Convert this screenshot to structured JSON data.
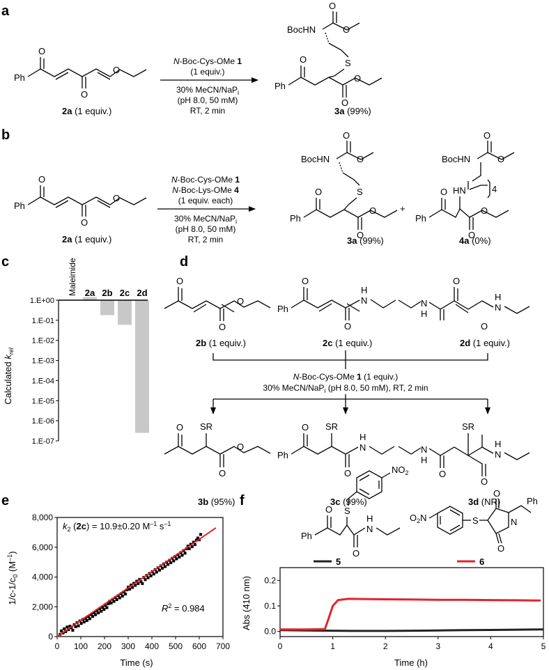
{
  "panels": {
    "a": {
      "label": "a",
      "reactant_label": "2a",
      "reactant_equiv": " (1 equiv.)",
      "product_label": "3a",
      "product_yield": " (99%)",
      "reagent_italic": "N",
      "reagent_rest": "-Boc-Cys-OMe ",
      "reagent_num": "1",
      "reagent_equiv": "(1 equiv.)",
      "cond1": "30% MeCN/NaP",
      "cond1_sub": "i",
      "cond2": "(pH 8.0, 50 mM)",
      "cond3": "RT, 2 min"
    },
    "b": {
      "label": "b",
      "reactant_label": "2a",
      "reactant_equiv": " (1 equiv.)",
      "reagent1_italic": "N",
      "reagent1_rest": "-Boc-Cys-OMe ",
      "reagent1_num": "1",
      "reagent2_italic": "N",
      "reagent2_rest": "-Boc-Lys-OMe ",
      "reagent2_num": "4",
      "reagent_equiv": "(1 equiv. each)",
      "cond1": "30% MeCN/NaP",
      "cond1_sub": "i",
      "cond2": "(pH 8.0, 50 mM)",
      "cond3": "RT, 2 min",
      "product1_label": "3a",
      "product1_yield": " (99%)",
      "plus": "+",
      "product2_label": "4a",
      "product2_yield": " (0%)",
      "chain_sub": "4"
    },
    "c": {
      "label": "c",
      "ylabel_main": "Calculated ",
      "ylabel_k": "k",
      "ylabel_sub": "rel"
    },
    "d": {
      "label": "d",
      "reactants": [
        {
          "label": "2b",
          "equiv": " (1 equiv.)"
        },
        {
          "label": "2c",
          "equiv": " (1 equiv.)"
        },
        {
          "label": "2d",
          "equiv": " (1 equiv.)"
        }
      ],
      "reagent_italic": "N",
      "reagent_rest": "-Boc-Cys-OMe ",
      "reagent_num": "1",
      "reagent_equiv": " (1 equiv.)",
      "cond_a": "30% MeCN/NaP",
      "cond_sub": "i",
      "cond_b": " (pH 8.0, 50 mM), RT, 2 min",
      "products": [
        {
          "label": "3b",
          "yield": " (95%)"
        },
        {
          "label": "3c",
          "yield": " (99%)"
        },
        {
          "label": "3d",
          "yield": " (NR)"
        }
      ]
    },
    "e": {
      "label": "e",
      "k_prefix": "k",
      "k_sub": "2",
      "k_cmpd_open": " (",
      "k_cmpd": "2c",
      "k_cmpd_close": ")",
      "k_value": " = 10.9±0.20 M",
      "k_unit_mid": " s",
      "r2_r": "R",
      "r2_value": " = 0.984",
      "ylabel": "1/c-1/c",
      "ylabel_sub": "0",
      "ylabel_unit": " (M",
      "xlabel": "Time (s)"
    },
    "f": {
      "label": "f",
      "legend": [
        {
          "name": "5",
          "color": "#222222"
        },
        {
          "name": "6",
          "color": "#e2232b"
        }
      ],
      "ylabel": "Abs (410 nm)",
      "xlabel": "Time (h)"
    }
  },
  "atoms": {
    "Ph": "Ph",
    "O": "O",
    "S": "S",
    "N": "N",
    "H": "H",
    "BocHN": "BocHN",
    "HN": "HN",
    "SR": "SR",
    "O2N": "O",
    "O2N_sub": "2",
    "O2N_N": "N",
    "NO2": "NO",
    "NO2_sub": "2"
  },
  "chart_data": [
    {
      "panel": "c",
      "type": "bar",
      "categories": [
        "Maleimide",
        "2a",
        "2b",
        "2c",
        "2d"
      ],
      "values": [
        1.0,
        1.4,
        0.18,
        0.06,
        2.5e-07
      ],
      "yscale": "log",
      "ylim": [
        1e-07,
        1
      ],
      "yticks": [
        "1.E+00",
        "1.E-01",
        "1.E-02",
        "1.E-03",
        "1.E-04",
        "1.E-05",
        "1.E-06",
        "1.E-07"
      ],
      "ylabel": "Calculated krel",
      "bar_color": "#c8c8c8"
    },
    {
      "panel": "e",
      "type": "scatter",
      "xlim": [
        0,
        700
      ],
      "ylim": [
        0,
        8000
      ],
      "xticks": [
        "0",
        "100",
        "200",
        "300",
        "400",
        "500",
        "600",
        "700"
      ],
      "yticks": [
        "0",
        "2,000",
        "4,000",
        "6,000",
        "8,000"
      ],
      "xlabel": "Time (s)",
      "fit": {
        "x": [
          0,
          670
        ],
        "y": [
          0,
          7300
        ],
        "color": "#e2232b"
      },
      "points": [
        [
          12,
          150
        ],
        [
          18,
          380
        ],
        [
          25,
          240
        ],
        [
          30,
          520
        ],
        [
          36,
          330
        ],
        [
          42,
          640
        ],
        [
          48,
          460
        ],
        [
          54,
          700
        ],
        [
          60,
          590
        ],
        [
          66,
          420
        ],
        [
          72,
          800
        ],
        [
          78,
          660
        ],
        [
          84,
          930
        ],
        [
          90,
          720
        ],
        [
          96,
          1050
        ],
        [
          102,
          880
        ],
        [
          108,
          1150
        ],
        [
          114,
          980
        ],
        [
          120,
          1220
        ],
        [
          126,
          1080
        ],
        [
          132,
          1340
        ],
        [
          138,
          1200
        ],
        [
          144,
          1480
        ],
        [
          150,
          1350
        ],
        [
          156,
          1600
        ],
        [
          162,
          1470
        ],
        [
          168,
          1720
        ],
        [
          174,
          1590
        ],
        [
          180,
          1850
        ],
        [
          186,
          1700
        ],
        [
          192,
          1960
        ],
        [
          198,
          1820
        ],
        [
          204,
          2080
        ],
        [
          210,
          1940
        ],
        [
          216,
          2200
        ],
        [
          222,
          2380
        ],
        [
          228,
          2250
        ],
        [
          234,
          2500
        ],
        [
          240,
          2360
        ],
        [
          246,
          2620
        ],
        [
          252,
          2480
        ],
        [
          258,
          2750
        ],
        [
          264,
          2600
        ],
        [
          270,
          2880
        ],
        [
          276,
          2720
        ],
        [
          282,
          3000
        ],
        [
          288,
          2860
        ],
        [
          294,
          3140
        ],
        [
          300,
          3320
        ],
        [
          306,
          3180
        ],
        [
          312,
          3460
        ],
        [
          318,
          3300
        ],
        [
          324,
          3580
        ],
        [
          330,
          3440
        ],
        [
          336,
          3720
        ],
        [
          342,
          3560
        ],
        [
          348,
          3840
        ],
        [
          354,
          3690
        ],
        [
          360,
          3560
        ],
        [
          366,
          3980
        ],
        [
          372,
          3820
        ],
        [
          378,
          4110
        ],
        [
          384,
          3950
        ],
        [
          390,
          4240
        ],
        [
          396,
          4080
        ],
        [
          402,
          4360
        ],
        [
          408,
          4200
        ],
        [
          414,
          4500
        ],
        [
          420,
          4330
        ],
        [
          426,
          4620
        ],
        [
          432,
          4460
        ],
        [
          438,
          4750
        ],
        [
          444,
          4590
        ],
        [
          450,
          4880
        ],
        [
          456,
          4700
        ],
        [
          462,
          5000
        ],
        [
          468,
          4840
        ],
        [
          474,
          5120
        ],
        [
          480,
          4960
        ],
        [
          486,
          5260
        ],
        [
          492,
          5080
        ],
        [
          498,
          5380
        ],
        [
          504,
          5220
        ],
        [
          510,
          5500
        ],
        [
          516,
          5340
        ],
        [
          522,
          5640
        ],
        [
          528,
          5460
        ],
        [
          534,
          5780
        ],
        [
          540,
          5600
        ],
        [
          546,
          5900
        ],
        [
          552,
          6080
        ],
        [
          558,
          5900
        ],
        [
          564,
          6200
        ],
        [
          570,
          6040
        ],
        [
          576,
          6340
        ],
        [
          582,
          6180
        ],
        [
          588,
          6480
        ],
        [
          594,
          6620
        ],
        [
          600,
          6500
        ],
        [
          606,
          6860
        ]
      ]
    },
    {
      "panel": "f",
      "type": "line",
      "xlim": [
        0,
        5
      ],
      "ylim": [
        -0.02,
        0.25
      ],
      "xticks": [
        "0",
        "1",
        "2",
        "3",
        "4",
        "5"
      ],
      "yticks": [
        "0.0",
        "0.1",
        "0.2"
      ],
      "xlabel": "Time (h)",
      "ylabel": "Abs (410 nm)",
      "series": [
        {
          "name": "5",
          "color": "#222222",
          "x": [
            0,
            0.5,
            1,
            1.5,
            2,
            2.5,
            3,
            3.5,
            4,
            4.5,
            5
          ],
          "y": [
            0.005,
            0.004,
            0.003,
            0.002,
            0.002,
            0.003,
            0.004,
            0.005,
            0.006,
            0.007,
            0.008
          ]
        },
        {
          "name": "6",
          "color": "#e2232b",
          "x": [
            0,
            0.5,
            0.85,
            0.92,
            1.0,
            1.1,
            1.3,
            1.6,
            2,
            2.5,
            3,
            3.5,
            4,
            4.5,
            4.95
          ],
          "y": [
            0.008,
            0.008,
            0.009,
            0.05,
            0.1,
            0.123,
            0.128,
            0.127,
            0.126,
            0.125,
            0.124,
            0.124,
            0.123,
            0.122,
            0.121
          ]
        }
      ]
    }
  ]
}
